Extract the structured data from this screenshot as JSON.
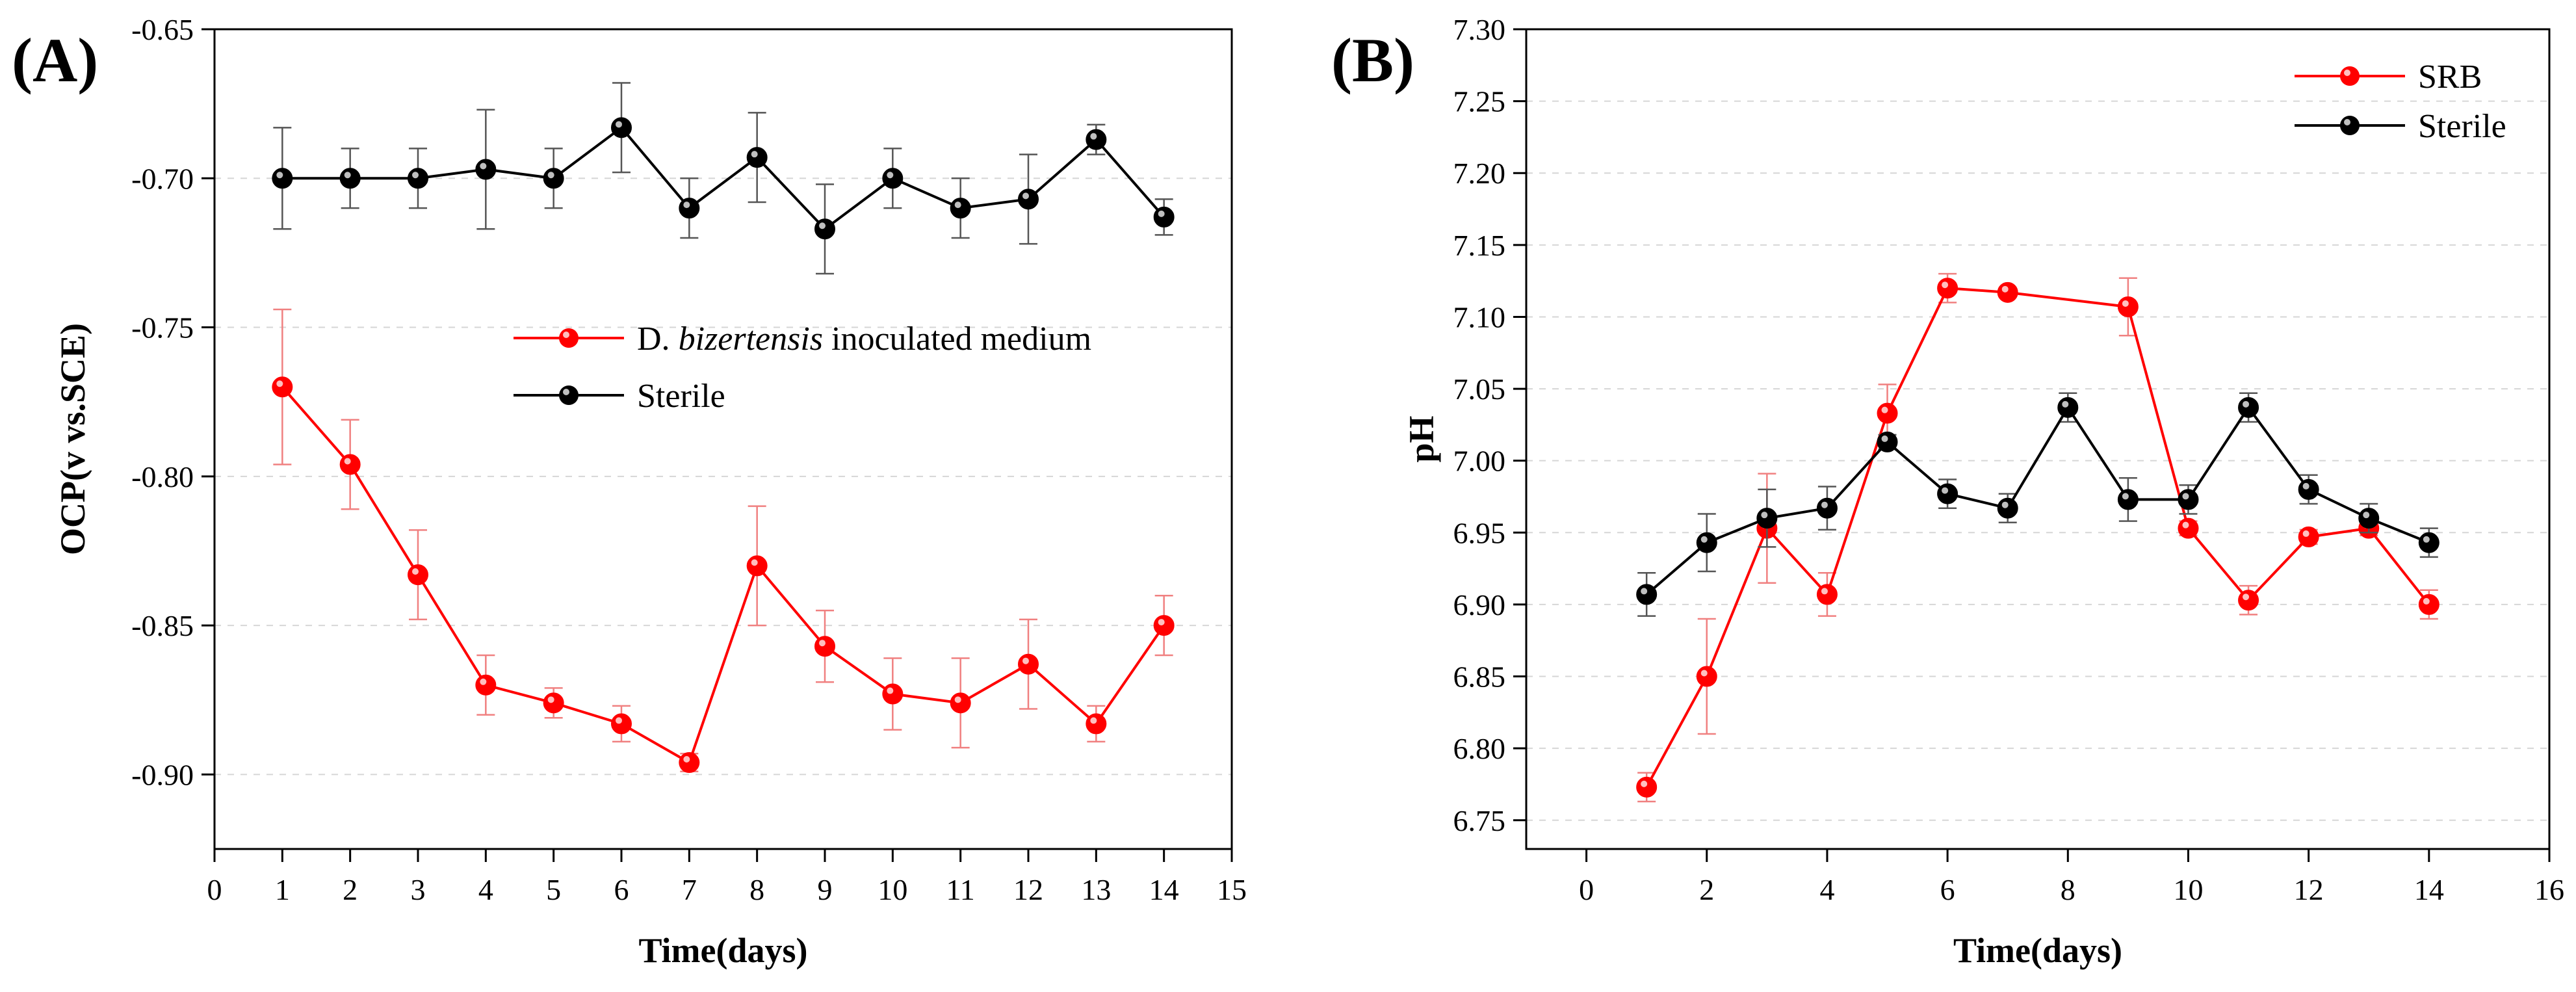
{
  "chart_data": [
    {
      "type": "line",
      "panel_label": "(A)",
      "title": "",
      "xlabel": "Time(days)",
      "ylabel": "OCP(v vs.SCE)",
      "xlim": [
        0,
        15
      ],
      "ylim": [
        -0.925,
        -0.65
      ],
      "x_ticks": [
        0,
        1,
        2,
        3,
        4,
        5,
        6,
        7,
        8,
        9,
        10,
        11,
        12,
        13,
        14,
        15
      ],
      "x_tick_labels": [
        "0",
        "1",
        "2",
        "3",
        "4",
        "5",
        "6",
        "7",
        "8",
        "9",
        "10",
        "11",
        "12",
        "13",
        "14",
        "15"
      ],
      "y_ticks": [
        -0.65,
        -0.7,
        -0.75,
        -0.8,
        -0.85,
        -0.9
      ],
      "y_tick_labels": [
        "-0.65",
        "-0.70",
        "-0.75",
        "-0.80",
        "-0.85",
        "-0.90"
      ],
      "grid": "horizontal dashed",
      "legend_position": "center-right",
      "legend": [
        {
          "prefix": "D. ",
          "italic": "bizertensis",
          "suffix": " inoculated medium",
          "color": "#ff0000"
        },
        {
          "prefix": "Sterile",
          "italic": "",
          "suffix": "",
          "color": "#000000"
        }
      ],
      "series": [
        {
          "name": "D. bizertensis inoculated medium",
          "color": "#ff0000",
          "x": [
            1,
            2,
            3,
            4,
            5,
            6,
            7,
            8,
            9,
            10,
            11,
            12,
            13,
            14
          ],
          "values": [
            -0.77,
            -0.796,
            -0.833,
            -0.87,
            -0.876,
            -0.883,
            -0.896,
            -0.83,
            -0.857,
            -0.873,
            -0.876,
            -0.863,
            -0.883,
            -0.85
          ],
          "errors": [
            0.026,
            0.015,
            0.015,
            0.01,
            0.005,
            0.006,
            0.003,
            0.02,
            0.012,
            0.012,
            0.015,
            0.015,
            0.006,
            0.01
          ]
        },
        {
          "name": "Sterile",
          "color": "#000000",
          "x": [
            1,
            2,
            3,
            4,
            5,
            6,
            7,
            8,
            9,
            10,
            11,
            12,
            13,
            14
          ],
          "values": [
            -0.7,
            -0.7,
            -0.7,
            -0.697,
            -0.7,
            -0.683,
            -0.71,
            -0.693,
            -0.717,
            -0.7,
            -0.71,
            -0.707,
            -0.687,
            -0.713
          ],
          "errors": [
            0.017,
            0.01,
            0.01,
            0.02,
            0.01,
            0.015,
            0.01,
            0.015,
            0.015,
            0.01,
            0.01,
            0.015,
            0.005,
            0.006
          ]
        }
      ]
    },
    {
      "type": "line",
      "panel_label": "(B)",
      "title": "",
      "xlabel": "Time(days)",
      "ylabel": "pH",
      "xlim": [
        -1,
        16
      ],
      "ylim": [
        6.73,
        7.3
      ],
      "x_ticks": [
        0,
        2,
        4,
        6,
        8,
        10,
        12,
        14,
        16
      ],
      "x_tick_labels": [
        "0",
        "2",
        "4",
        "6",
        "8",
        "10",
        "12",
        "14",
        "16"
      ],
      "y_ticks": [
        6.75,
        6.8,
        6.85,
        6.9,
        6.95,
        7.0,
        7.05,
        7.1,
        7.15,
        7.2,
        7.25,
        7.3
      ],
      "y_tick_labels": [
        "6.75",
        "6.80",
        "6.85",
        "6.90",
        "6.95",
        "7.00",
        "7.05",
        "7.10",
        "7.15",
        "7.20",
        "7.25",
        "7.30"
      ],
      "grid": "horizontal dashed",
      "legend_position": "top-right",
      "legend": [
        {
          "prefix": "SRB",
          "italic": "",
          "suffix": "",
          "color": "#ff0000"
        },
        {
          "prefix": "Sterile",
          "italic": "",
          "suffix": "",
          "color": "#000000"
        }
      ],
      "series": [
        {
          "name": "SRB",
          "color": "#ff0000",
          "x": [
            1,
            2,
            3,
            4,
            5,
            6,
            7,
            9,
            10,
            11,
            12,
            13,
            14
          ],
          "values": [
            6.773,
            6.85,
            6.953,
            6.907,
            7.033,
            7.12,
            7.117,
            7.107,
            6.953,
            6.903,
            6.947,
            6.953,
            6.9
          ],
          "errors": [
            0.01,
            0.04,
            0.038,
            0.015,
            0.02,
            0.01,
            0.003,
            0.02,
            0.005,
            0.01,
            0.005,
            0.005,
            0.01
          ]
        },
        {
          "name": "Sterile",
          "color": "#000000",
          "x": [
            1,
            2,
            3,
            4,
            5,
            6,
            7,
            8,
            9,
            10,
            11,
            12,
            13,
            14
          ],
          "values": [
            6.907,
            6.943,
            6.96,
            6.967,
            7.013,
            6.977,
            6.967,
            7.037,
            6.973,
            6.973,
            7.037,
            6.98,
            6.96,
            6.943
          ],
          "errors": [
            0.015,
            0.02,
            0.02,
            0.015,
            0.005,
            0.01,
            0.01,
            0.01,
            0.015,
            0.01,
            0.01,
            0.01,
            0.01,
            0.01
          ]
        }
      ]
    }
  ]
}
